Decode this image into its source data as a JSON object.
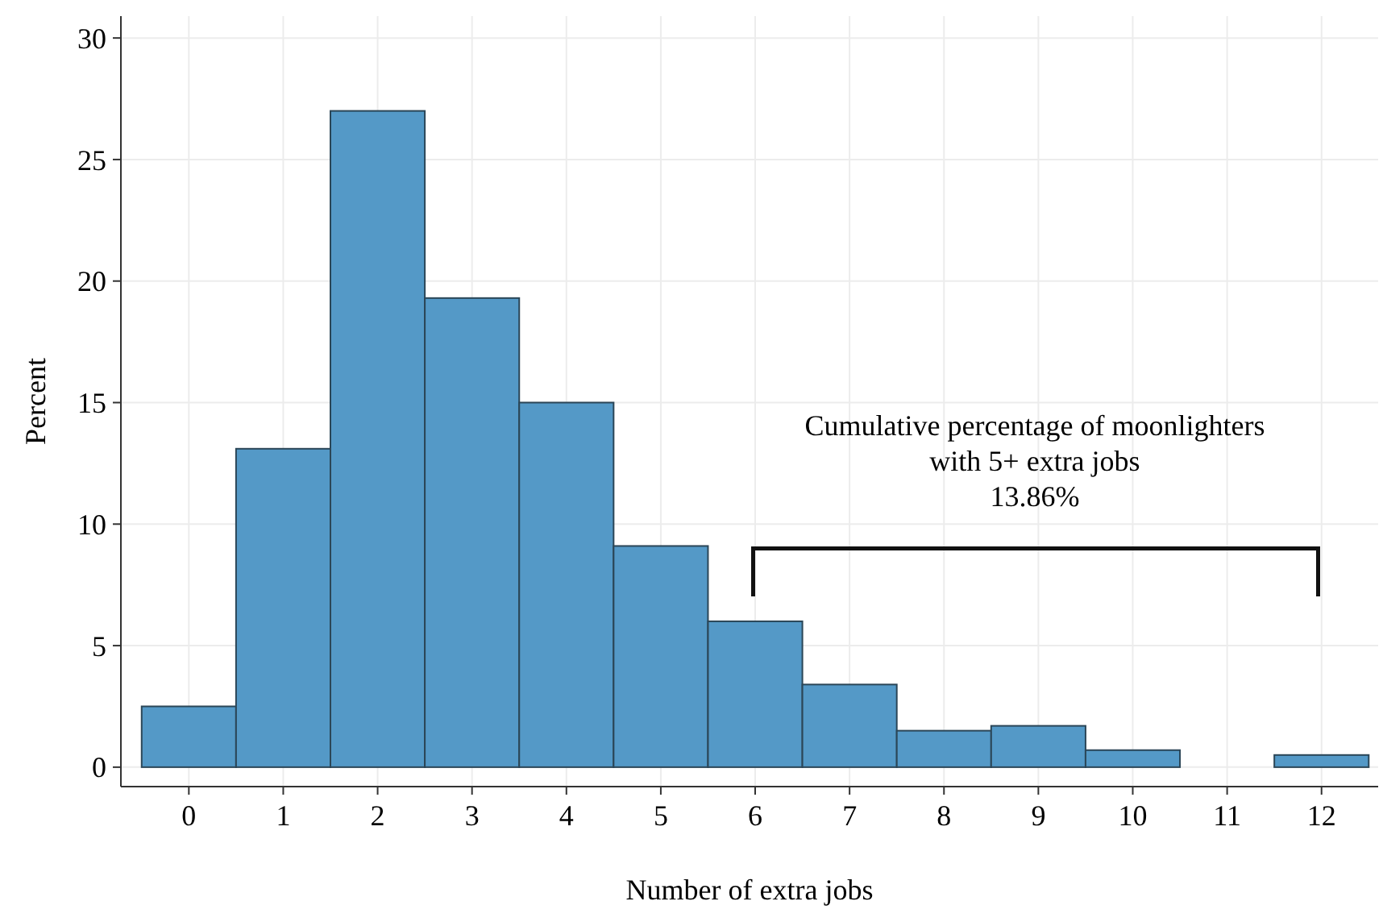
{
  "chart_data": {
    "type": "histogram",
    "xlabel": "Number of extra jobs",
    "ylabel": "Percent",
    "bins": [
      -0.5,
      0.5,
      1.5,
      2.5,
      3.5,
      4.5,
      5.5,
      6.5,
      7.5,
      8.5,
      9.5,
      10.5,
      11.5,
      12.5
    ],
    "values": [
      2.5,
      13.1,
      27.0,
      19.3,
      15.0,
      9.1,
      6.0,
      3.4,
      1.5,
      1.7,
      0.7,
      0,
      0.5
    ],
    "color": "#5499c7",
    "xlim": [
      -0.72,
      12.6
    ],
    "xticks": [
      0,
      1,
      2,
      3,
      4,
      5,
      6,
      7,
      8,
      9,
      10,
      11,
      12
    ],
    "ylim": [
      -0.8,
      30.9
    ],
    "yticks": [
      0,
      5,
      10,
      15,
      20,
      25,
      30
    ],
    "grid": true,
    "annotations": [
      "Cumulative percentage of moonlighters\nwith 5+ extra jobs\n13.86%"
    ]
  }
}
